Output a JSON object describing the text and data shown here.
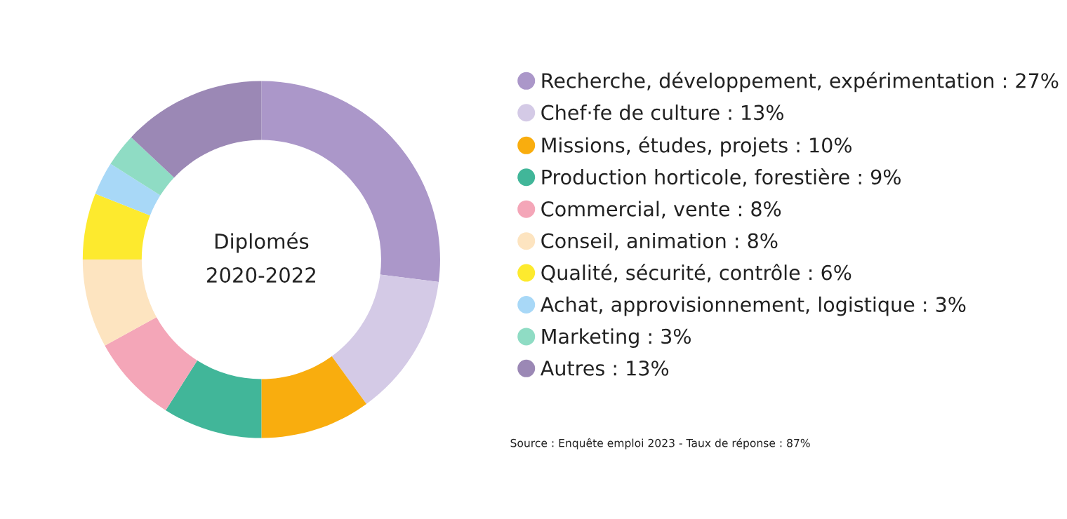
{
  "chart_data": {
    "type": "donut",
    "categories": [
      "Recherche, développement, expérimentation : 27%",
      "Chef·fe de culture : 13%",
      "Missions, études, projets : 10%",
      "Production horticole, forestière : 9%",
      "Commercial, vente : 8%",
      "Conseil, animation : 8%",
      "Qualité, sécurité, contrôle : 6%",
      "Achat, approvisionnement, logistique : 3%",
      "Marketing : 3%",
      "Autres : 13%"
    ],
    "values": [
      27,
      13,
      10,
      9,
      8,
      8,
      6,
      3,
      3,
      13
    ],
    "colors": [
      "#ab97c9",
      "#d4cae6",
      "#f9ad0e",
      "#41b699",
      "#f4a6b8",
      "#fde4c0",
      "#fdea2e",
      "#a8d8f7",
      "#8fdcc4",
      "#9b88b5"
    ],
    "legend": "right",
    "annotations": [
      "Diplomés\n2020-2022",
      "Source : Enquête emploi 2023 - Taux de réponse : 87%"
    ]
  }
}
